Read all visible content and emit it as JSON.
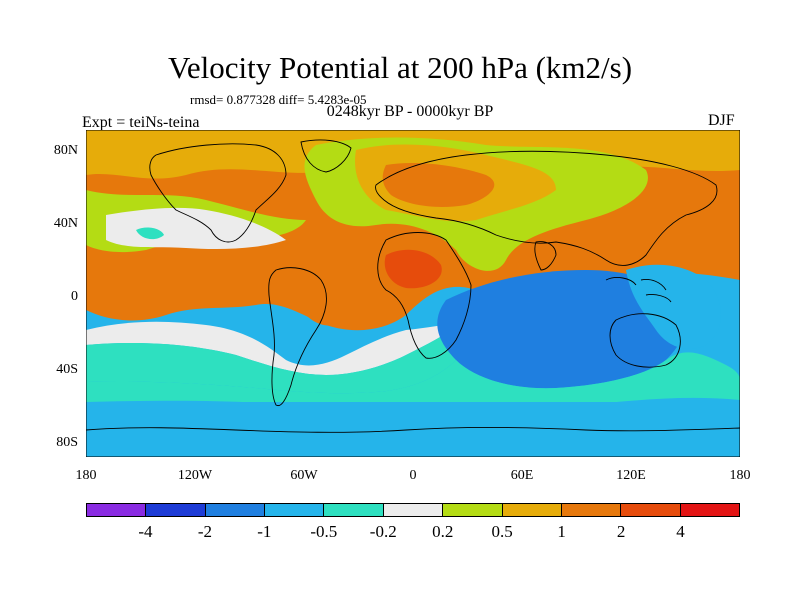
{
  "header": {
    "title": "Velocity Potential at 200 hPa (km2/s)",
    "rmsd_line": "rmsd= 0.877328 diff= 5.4283e-05",
    "subtitle": "0248kyr BP - 0000kyr BP",
    "expt": "Expt = teiNs-teina",
    "season": "DJF"
  },
  "axes": {
    "y_ticks": [
      "80N",
      "40N",
      "0",
      "40S",
      "80S"
    ],
    "x_ticks": [
      "180",
      "120W",
      "60W",
      "0",
      "60E",
      "120E",
      "180"
    ]
  },
  "colorbar": {
    "colors": [
      "#8a2be2",
      "#1e3cd6",
      "#1f7fe0",
      "#25b4ea",
      "#2ee0c0",
      "#ececec",
      "#b4dc14",
      "#e6ac0a",
      "#e6780c",
      "#e64c0c",
      "#e31414"
    ],
    "labels": [
      "-4",
      "-2",
      "-1",
      "-0.5",
      "-0.2",
      "0.2",
      "0.5",
      "1",
      "2",
      "4"
    ]
  },
  "chart_data": {
    "type": "heatmap",
    "title": "Velocity Potential at 200 hPa (km2/s)",
    "subtitle": "0248kyr BP - 0000kyr BP",
    "season": "DJF",
    "rmsd": 0.877328,
    "diff": 5.4283e-05,
    "contour_levels": [
      -4,
      -2,
      -1,
      -0.5,
      -0.2,
      0.2,
      0.5,
      1,
      2,
      4
    ],
    "xlim": [
      -180,
      180
    ],
    "ylim": [
      -90,
      90
    ],
    "projection": "cylindrical-equidistant"
  }
}
